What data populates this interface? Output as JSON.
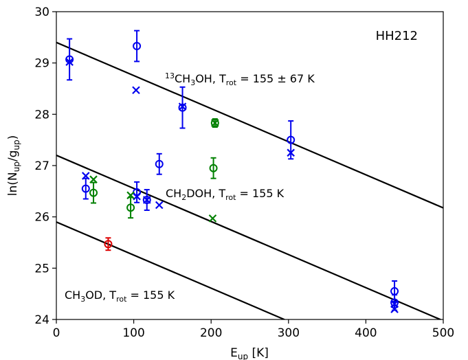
{
  "chart_data": {
    "type": "scatter",
    "panel_label": "HH212",
    "xlabel": {
      "main": "E",
      "sub": "up",
      "unit": " [K]"
    },
    "ylabel": {
      "pre": "ln(N",
      "sub1": "up",
      "mid": "/g",
      "sub2": "up",
      "post": ")"
    },
    "xlim": [
      0,
      500
    ],
    "ylim": [
      24,
      30
    ],
    "x_ticks": [
      0,
      100,
      200,
      300,
      400,
      500
    ],
    "y_ticks": [
      24,
      25,
      26,
      27,
      28,
      29,
      30
    ],
    "grid": false,
    "colors": {
      "blue": "#0000ee",
      "green": "#008000",
      "red": "#dd0000",
      "line": "#000000"
    },
    "fits": [
      {
        "intercept": 29.4,
        "slope": -0.00645,
        "x_range": [
          0,
          500
        ],
        "label_parts": [
          {
            "t": "13",
            "sup": true
          },
          {
            "t": "CH"
          },
          {
            "t": "3",
            "sub": true
          },
          {
            "t": "OH, T"
          },
          {
            "t": "rot",
            "sub": true
          },
          {
            "t": " = 155 ± 67 K"
          }
        ]
      },
      {
        "intercept": 27.2,
        "slope": -0.00645,
        "x_range": [
          0,
          500
        ],
        "label_parts": [
          {
            "t": "CH"
          },
          {
            "t": "2",
            "sub": true
          },
          {
            "t": "DOH, T"
          },
          {
            "t": "rot",
            "sub": true
          },
          {
            "t": " = 155 K"
          }
        ]
      },
      {
        "intercept": 25.9,
        "slope": -0.00645,
        "x_range": [
          0,
          295
        ],
        "label_parts": [
          {
            "t": "CH"
          },
          {
            "t": "3",
            "sub": true
          },
          {
            "t": "OD, T"
          },
          {
            "t": "rot",
            "sub": true
          },
          {
            "t": " = 155 K"
          }
        ]
      }
    ],
    "series": [
      {
        "color": "blue",
        "marker": "circle",
        "points": [
          {
            "x": 17,
            "y": 29.07,
            "err": 0.4
          },
          {
            "x": 104,
            "y": 29.33,
            "err": 0.3
          },
          {
            "x": 163,
            "y": 28.13,
            "err": 0.4
          },
          {
            "x": 303,
            "y": 27.5,
            "err": 0.37
          },
          {
            "x": 38,
            "y": 26.55,
            "err": 0.2
          },
          {
            "x": 104,
            "y": 26.48,
            "err": 0.2
          },
          {
            "x": 117,
            "y": 26.33,
            "err": 0.2
          },
          {
            "x": 133,
            "y": 27.03,
            "err": 0.2
          },
          {
            "x": 437,
            "y": 24.55,
            "err": 0.2
          },
          {
            "x": 437,
            "y": 24.33,
            "err": 0.15
          }
        ]
      },
      {
        "color": "blue",
        "marker": "x",
        "points": [
          {
            "x": 17,
            "y": 29.02
          },
          {
            "x": 103,
            "y": 28.47
          },
          {
            "x": 163,
            "y": 28.15
          },
          {
            "x": 303,
            "y": 27.25
          },
          {
            "x": 38,
            "y": 26.8
          },
          {
            "x": 104,
            "y": 26.4
          },
          {
            "x": 117,
            "y": 26.33
          },
          {
            "x": 133,
            "y": 26.23
          },
          {
            "x": 437,
            "y": 24.3
          },
          {
            "x": 437,
            "y": 24.2
          }
        ]
      },
      {
        "color": "green",
        "marker": "circle",
        "points": [
          {
            "x": 48,
            "y": 26.47,
            "err": 0.2
          },
          {
            "x": 96,
            "y": 26.18,
            "err": 0.2
          },
          {
            "x": 205,
            "y": 27.83,
            "err": 0.08
          },
          {
            "x": 203,
            "y": 26.95,
            "err": 0.2
          }
        ]
      },
      {
        "color": "green",
        "marker": "x",
        "points": [
          {
            "x": 48,
            "y": 26.73
          },
          {
            "x": 96,
            "y": 26.42
          },
          {
            "x": 205,
            "y": 27.83
          },
          {
            "x": 202,
            "y": 25.97
          }
        ]
      },
      {
        "color": "red",
        "marker": "circle",
        "points": [
          {
            "x": 67,
            "y": 25.47,
            "err": 0.12
          }
        ]
      }
    ]
  }
}
